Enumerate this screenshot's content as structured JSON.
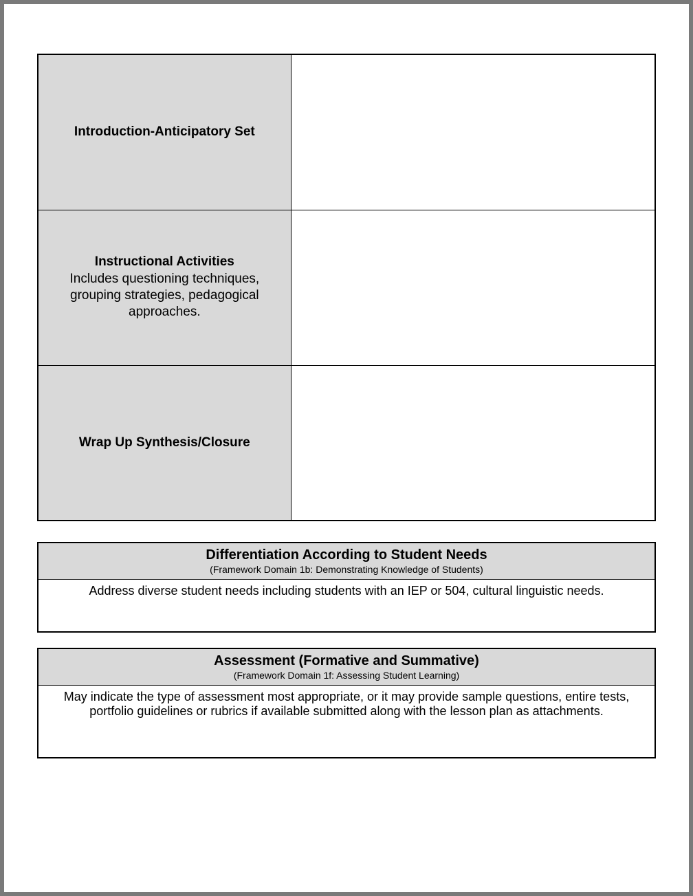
{
  "colors": {
    "page_border": "#7a7a7a",
    "page_bg": "#ffffff",
    "cell_label_bg": "#d9d9d9",
    "cell_content_bg": "#ffffff",
    "border": "#000000",
    "text": "#000000"
  },
  "main_table": {
    "rows": [
      {
        "title": "Introduction-Anticipatory Set",
        "subtitle": "",
        "content": ""
      },
      {
        "title": "Instructional Activities",
        "subtitle": "Includes questioning techniques, grouping strategies, pedagogical approaches.",
        "content": ""
      },
      {
        "title": "Wrap Up Synthesis/Closure",
        "subtitle": "",
        "content": ""
      }
    ]
  },
  "sections": [
    {
      "title": "Differentiation According to Student Needs",
      "subtitle": "(Framework Domain 1b: Demonstrating Knowledge of Students)",
      "body": "Address diverse student needs including students with an IEP or 504, cultural linguistic needs."
    },
    {
      "title": "Assessment (Formative and Summative)",
      "subtitle": "(Framework Domain 1f: Assessing Student Learning)",
      "body": "May indicate the type of assessment most appropriate, or it may provide sample questions, entire tests, portfolio guidelines or rubrics if available submitted along with the lesson plan as attachments."
    }
  ]
}
